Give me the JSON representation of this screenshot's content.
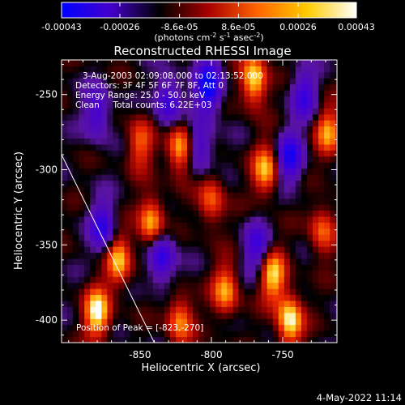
{
  "colorbar": {
    "tick_labels": [
      "-0.00043",
      "-0.00026",
      "-8.6e-05",
      "8.6e-05",
      "0.00026",
      "0.00043"
    ],
    "ticks": [
      -0.00043,
      -0.00026,
      -8.6e-05,
      8.6e-05,
      0.00026,
      0.00043
    ],
    "range": [
      -0.00043,
      0.00043
    ],
    "unit_main": "(photons cm",
    "unit_exp1": "-2",
    "unit_mid1": " s",
    "unit_exp2": "-1",
    "unit_mid2": " asec",
    "unit_exp3": "-2",
    "unit_end": ")",
    "colors": [
      "#0000ff",
      "#4400cc",
      "#000000",
      "#aa0000",
      "#ff6600",
      "#ffcc00",
      "#ffffff"
    ]
  },
  "chart_data": {
    "type": "heatmap",
    "title": "Reconstructed RHESSI Image",
    "xlabel": "Heliocentric X (arcsec)",
    "ylabel": "Heliocentric Y (arcsec)",
    "xlim": [
      -905,
      -712
    ],
    "ylim": [
      -415,
      -227
    ],
    "xticks": [
      -850,
      -800,
      -750
    ],
    "yticks": [
      -250,
      -300,
      -350,
      -400
    ],
    "xtick_labels": [
      "-850",
      "-800",
      "-750"
    ],
    "ytick_labels": [
      "-250",
      "-300",
      "-350",
      "-400"
    ],
    "limb_line": [
      [
        -905,
        -290
      ],
      [
        -840,
        -415
      ]
    ],
    "grid_res_arcsec": 4,
    "hot_spots": [
      {
        "x": -880,
        "y": -395,
        "value": 0.00043
      },
      {
        "x": -865,
        "y": -360,
        "value": 0.00034
      },
      {
        "x": -842,
        "y": -335,
        "value": 0.00036
      },
      {
        "x": -822,
        "y": -285,
        "value": 0.00036
      },
      {
        "x": -800,
        "y": -320,
        "value": 0.00026
      },
      {
        "x": -790,
        "y": -380,
        "value": 0.00032
      },
      {
        "x": -770,
        "y": -240,
        "value": 0.00041
      },
      {
        "x": -762,
        "y": -300,
        "value": 0.00034
      },
      {
        "x": -757,
        "y": -370,
        "value": 0.00038
      },
      {
        "x": -745,
        "y": -400,
        "value": 0.00043
      },
      {
        "x": -822,
        "y": -400,
        "value": 0.0003
      },
      {
        "x": -850,
        "y": -282,
        "value": 0.00026
      },
      {
        "x": -718,
        "y": -275,
        "value": 0.0003
      },
      {
        "x": -722,
        "y": -340,
        "value": 0.00026
      }
    ],
    "cold_spots": [
      {
        "x": -802,
        "y": -245,
        "value": -0.00043
      },
      {
        "x": -835,
        "y": -358,
        "value": -0.00034
      },
      {
        "x": -876,
        "y": -338,
        "value": -0.0003
      },
      {
        "x": -808,
        "y": -285,
        "value": -0.00026
      },
      {
        "x": -745,
        "y": -292,
        "value": -0.00034
      },
      {
        "x": -768,
        "y": -352,
        "value": -0.00026
      },
      {
        "x": -880,
        "y": -262,
        "value": -0.00026
      },
      {
        "x": -830,
        "y": -255,
        "value": -0.0003
      },
      {
        "x": -735,
        "y": -250,
        "value": -0.00026
      }
    ]
  },
  "annotations": {
    "line1": "3-Aug-2003 02:09:08.000 to 02:13:52.000",
    "line2": "Detectors: 3F 4F 5F 6F 7F 8F, Att 0",
    "line3": "Energy Range: 25.0 - 50.0 keV",
    "line4": "Clean     Total counts: 6.22E+03",
    "peak": "Position of Peak = [-823,-270]"
  },
  "footer": {
    "date": "4-May-2022 11:14"
  }
}
